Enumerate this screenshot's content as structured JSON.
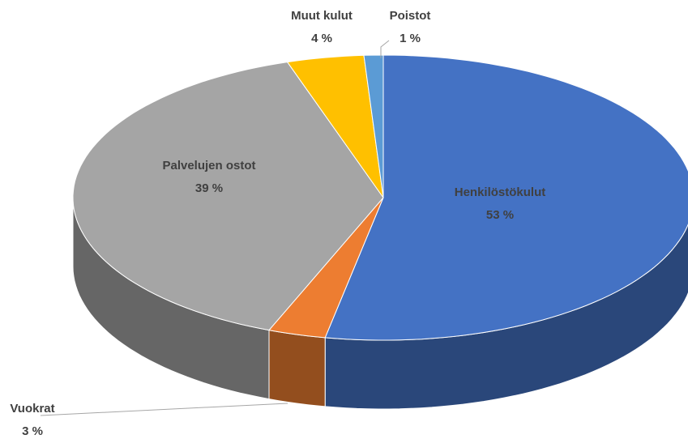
{
  "chart_data": {
    "type": "pie",
    "categories": [
      "Henkilöstökulut",
      "Vuokrat",
      "Palvelujen ostot",
      "Muut kulut",
      "Poistot"
    ],
    "values": [
      53,
      3,
      39,
      4,
      1
    ],
    "value_labels": [
      "53 %",
      "3 %",
      "39 %",
      "4 %",
      "1 %"
    ],
    "colors": [
      "#4472c4",
      "#ed7d31",
      "#a5a5a5",
      "#ffc000",
      "#5b9bd5"
    ]
  }
}
